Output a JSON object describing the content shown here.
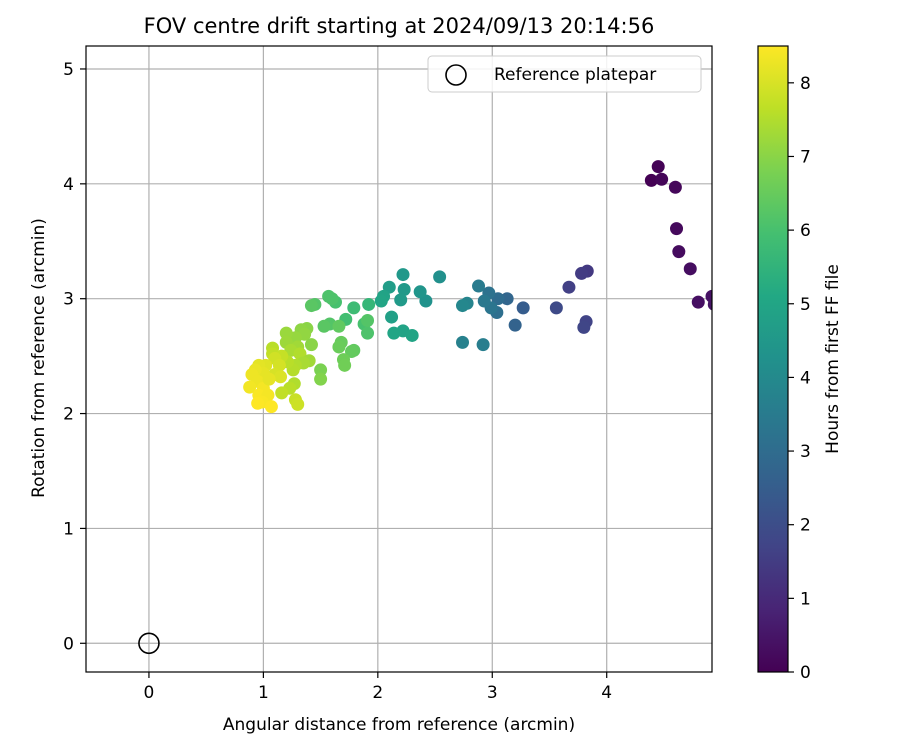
{
  "chart_data": {
    "type": "scatter",
    "title": "FOV centre drift starting at 2024/09/13 20:14:56",
    "xlabel": "Angular distance from reference (arcmin)",
    "ylabel": "Rotation from reference (arcmin)",
    "xlim": [
      -0.55,
      4.92
    ],
    "ylim": [
      -0.25,
      5.2
    ],
    "xticks": [
      0,
      1,
      2,
      3,
      4
    ],
    "yticks": [
      0,
      1,
      2,
      3,
      4,
      5
    ],
    "grid": true,
    "legend": {
      "placement": "top-right",
      "entries": [
        "Reference platepar"
      ]
    },
    "reference_point": {
      "name": "Reference platepar",
      "x": 0,
      "y": 0
    },
    "colorbar": {
      "label": "Hours from first FF file",
      "colormap": "viridis",
      "range": [
        0,
        8.5
      ],
      "ticks": [
        0,
        1,
        2,
        3,
        4,
        5,
        6,
        7,
        8
      ]
    },
    "points": [
      {
        "x": 4.39,
        "y": 4.03,
        "c": 0.0
      },
      {
        "x": 4.45,
        "y": 4.15,
        "c": 0.05
      },
      {
        "x": 4.48,
        "y": 4.04,
        "c": 0.1
      },
      {
        "x": 4.6,
        "y": 3.97,
        "c": 0.15
      },
      {
        "x": 4.61,
        "y": 3.61,
        "c": 0.2
      },
      {
        "x": 4.63,
        "y": 3.41,
        "c": 0.25
      },
      {
        "x": 4.73,
        "y": 3.26,
        "c": 0.3
      },
      {
        "x": 4.8,
        "y": 2.97,
        "c": 0.35
      },
      {
        "x": 4.92,
        "y": 3.02,
        "c": 0.4
      },
      {
        "x": 4.94,
        "y": 2.95,
        "c": 0.45
      },
      {
        "x": 3.83,
        "y": 3.24,
        "c": 1.4
      },
      {
        "x": 3.78,
        "y": 3.22,
        "c": 1.5
      },
      {
        "x": 3.67,
        "y": 3.1,
        "c": 1.6
      },
      {
        "x": 3.82,
        "y": 2.8,
        "c": 1.7
      },
      {
        "x": 3.8,
        "y": 2.75,
        "c": 1.75
      },
      {
        "x": 3.56,
        "y": 2.92,
        "c": 1.9
      },
      {
        "x": 3.27,
        "y": 2.92,
        "c": 2.5
      },
      {
        "x": 3.2,
        "y": 2.77,
        "c": 2.7
      },
      {
        "x": 3.13,
        "y": 3.0,
        "c": 2.8
      },
      {
        "x": 3.05,
        "y": 3.0,
        "c": 3.0
      },
      {
        "x": 3.04,
        "y": 2.88,
        "c": 3.1
      },
      {
        "x": 2.97,
        "y": 3.05,
        "c": 3.2
      },
      {
        "x": 2.99,
        "y": 2.92,
        "c": 3.3
      },
      {
        "x": 2.93,
        "y": 2.98,
        "c": 3.4
      },
      {
        "x": 2.88,
        "y": 3.11,
        "c": 3.5
      },
      {
        "x": 2.92,
        "y": 2.6,
        "c": 3.6
      },
      {
        "x": 2.74,
        "y": 2.62,
        "c": 3.7
      },
      {
        "x": 2.78,
        "y": 2.96,
        "c": 3.8
      },
      {
        "x": 2.74,
        "y": 2.94,
        "c": 3.9
      },
      {
        "x": 2.54,
        "y": 3.19,
        "c": 4.2
      },
      {
        "x": 2.42,
        "y": 2.98,
        "c": 4.3
      },
      {
        "x": 2.37,
        "y": 3.06,
        "c": 4.4
      },
      {
        "x": 2.22,
        "y": 3.21,
        "c": 4.5
      },
      {
        "x": 2.23,
        "y": 3.08,
        "c": 4.55
      },
      {
        "x": 2.2,
        "y": 2.99,
        "c": 4.6
      },
      {
        "x": 2.1,
        "y": 3.1,
        "c": 4.7
      },
      {
        "x": 2.12,
        "y": 2.84,
        "c": 4.8
      },
      {
        "x": 2.05,
        "y": 3.02,
        "c": 4.9
      },
      {
        "x": 2.03,
        "y": 2.98,
        "c": 5.0
      },
      {
        "x": 2.22,
        "y": 2.72,
        "c": 4.9
      },
      {
        "x": 2.14,
        "y": 2.7,
        "c": 5.0
      },
      {
        "x": 2.3,
        "y": 2.68,
        "c": 4.95
      },
      {
        "x": 1.92,
        "y": 2.95,
        "c": 5.6
      },
      {
        "x": 1.79,
        "y": 2.92,
        "c": 5.8
      },
      {
        "x": 1.72,
        "y": 2.82,
        "c": 5.9
      },
      {
        "x": 1.63,
        "y": 2.97,
        "c": 6.0
      },
      {
        "x": 1.57,
        "y": 3.02,
        "c": 6.1
      },
      {
        "x": 1.6,
        "y": 3.0,
        "c": 6.1
      },
      {
        "x": 1.45,
        "y": 2.95,
        "c": 6.2
      },
      {
        "x": 1.42,
        "y": 2.94,
        "c": 6.3
      },
      {
        "x": 1.58,
        "y": 2.78,
        "c": 6.2
      },
      {
        "x": 1.53,
        "y": 2.76,
        "c": 6.3
      },
      {
        "x": 1.66,
        "y": 2.76,
        "c": 6.4
      },
      {
        "x": 1.88,
        "y": 2.78,
        "c": 6.0
      },
      {
        "x": 1.91,
        "y": 2.7,
        "c": 6.1
      },
      {
        "x": 1.91,
        "y": 2.81,
        "c": 6.2
      },
      {
        "x": 1.79,
        "y": 2.55,
        "c": 6.4
      },
      {
        "x": 1.77,
        "y": 2.54,
        "c": 6.45
      },
      {
        "x": 1.68,
        "y": 2.62,
        "c": 6.5
      },
      {
        "x": 1.66,
        "y": 2.58,
        "c": 6.55
      },
      {
        "x": 1.7,
        "y": 2.47,
        "c": 6.6
      },
      {
        "x": 1.71,
        "y": 2.42,
        "c": 6.65
      },
      {
        "x": 1.5,
        "y": 2.38,
        "c": 6.8
      },
      {
        "x": 1.5,
        "y": 2.3,
        "c": 6.9
      },
      {
        "x": 1.38,
        "y": 2.74,
        "c": 7.0
      },
      {
        "x": 1.33,
        "y": 2.73,
        "c": 7.05
      },
      {
        "x": 1.36,
        "y": 2.69,
        "c": 7.1
      },
      {
        "x": 1.28,
        "y": 2.66,
        "c": 7.15
      },
      {
        "x": 1.2,
        "y": 2.7,
        "c": 7.2
      },
      {
        "x": 1.2,
        "y": 2.62,
        "c": 7.25
      },
      {
        "x": 1.42,
        "y": 2.6,
        "c": 7.0
      },
      {
        "x": 1.3,
        "y": 2.58,
        "c": 7.3
      },
      {
        "x": 1.24,
        "y": 2.55,
        "c": 7.4
      },
      {
        "x": 1.32,
        "y": 2.52,
        "c": 7.5
      },
      {
        "x": 1.4,
        "y": 2.46,
        "c": 7.3
      },
      {
        "x": 1.35,
        "y": 2.44,
        "c": 7.4
      },
      {
        "x": 1.28,
        "y": 2.42,
        "c": 7.5
      },
      {
        "x": 1.26,
        "y": 2.38,
        "c": 7.55
      },
      {
        "x": 1.21,
        "y": 2.45,
        "c": 7.6
      },
      {
        "x": 1.08,
        "y": 2.57,
        "c": 7.6
      },
      {
        "x": 1.08,
        "y": 2.52,
        "c": 7.7
      },
      {
        "x": 1.16,
        "y": 2.5,
        "c": 7.75
      },
      {
        "x": 1.27,
        "y": 2.26,
        "c": 7.5
      },
      {
        "x": 1.23,
        "y": 2.22,
        "c": 7.6
      },
      {
        "x": 1.16,
        "y": 2.18,
        "c": 7.7
      },
      {
        "x": 1.28,
        "y": 2.12,
        "c": 7.8
      },
      {
        "x": 1.3,
        "y": 2.08,
        "c": 7.85
      },
      {
        "x": 1.1,
        "y": 2.48,
        "c": 7.9
      },
      {
        "x": 1.14,
        "y": 2.42,
        "c": 7.95
      },
      {
        "x": 1.1,
        "y": 2.34,
        "c": 8.0
      },
      {
        "x": 1.15,
        "y": 2.32,
        "c": 8.05
      },
      {
        "x": 1.02,
        "y": 2.42,
        "c": 8.1
      },
      {
        "x": 0.96,
        "y": 2.42,
        "c": 8.15
      },
      {
        "x": 1.0,
        "y": 2.35,
        "c": 8.2
      },
      {
        "x": 0.93,
        "y": 2.38,
        "c": 8.25
      },
      {
        "x": 0.9,
        "y": 2.34,
        "c": 8.3
      },
      {
        "x": 0.95,
        "y": 2.28,
        "c": 8.3
      },
      {
        "x": 0.88,
        "y": 2.23,
        "c": 8.35
      },
      {
        "x": 1.0,
        "y": 2.22,
        "c": 8.4
      },
      {
        "x": 0.96,
        "y": 2.16,
        "c": 8.45
      },
      {
        "x": 1.04,
        "y": 2.16,
        "c": 8.4
      },
      {
        "x": 0.99,
        "y": 2.1,
        "c": 8.45
      },
      {
        "x": 0.95,
        "y": 2.09,
        "c": 8.5
      },
      {
        "x": 1.07,
        "y": 2.06,
        "c": 8.5
      },
      {
        "x": 1.05,
        "y": 2.3,
        "c": 8.2
      }
    ]
  }
}
